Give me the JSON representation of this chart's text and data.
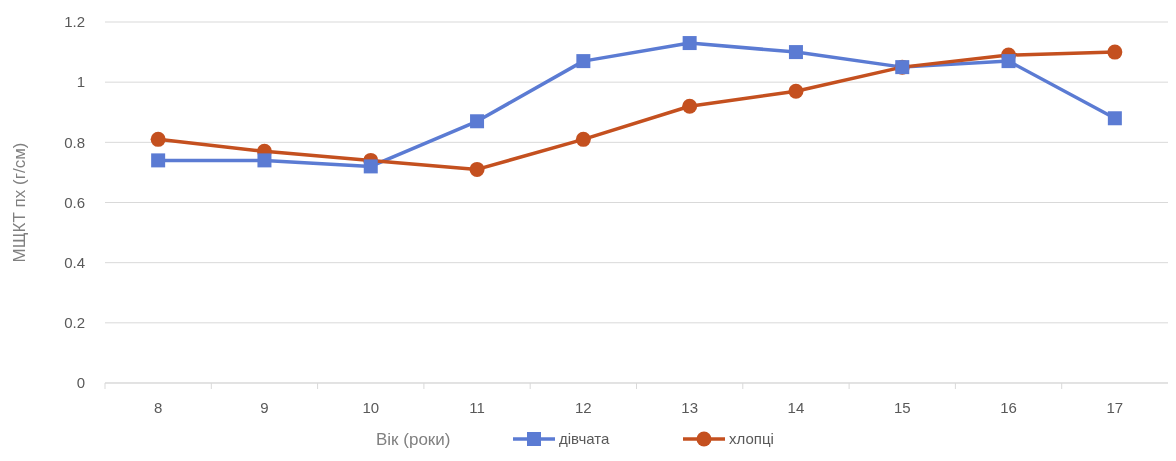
{
  "chart_data": {
    "type": "line",
    "xlabel": "Вік (роки)",
    "ylabel": "МЩКТ пх (г/см)",
    "categories": [
      "8",
      "9",
      "10",
      "11",
      "12",
      "13",
      "14",
      "15",
      "16",
      "17"
    ],
    "series": [
      {
        "name": "дівчата",
        "color": "#5b7bd3",
        "marker": "square",
        "values": [
          0.74,
          0.74,
          0.72,
          0.87,
          1.07,
          1.13,
          1.1,
          1.05,
          1.07,
          0.88
        ]
      },
      {
        "name": "хлопці",
        "color": "#c4501f",
        "marker": "circle",
        "values": [
          0.81,
          0.77,
          0.74,
          0.71,
          0.81,
          0.92,
          0.97,
          1.05,
          1.09,
          1.1
        ]
      }
    ],
    "ylim": [
      0,
      1.2
    ],
    "yticks": [
      0,
      0.2,
      0.4,
      0.6,
      0.8,
      1,
      1.2
    ],
    "grid": "y",
    "legend": "bottom"
  }
}
